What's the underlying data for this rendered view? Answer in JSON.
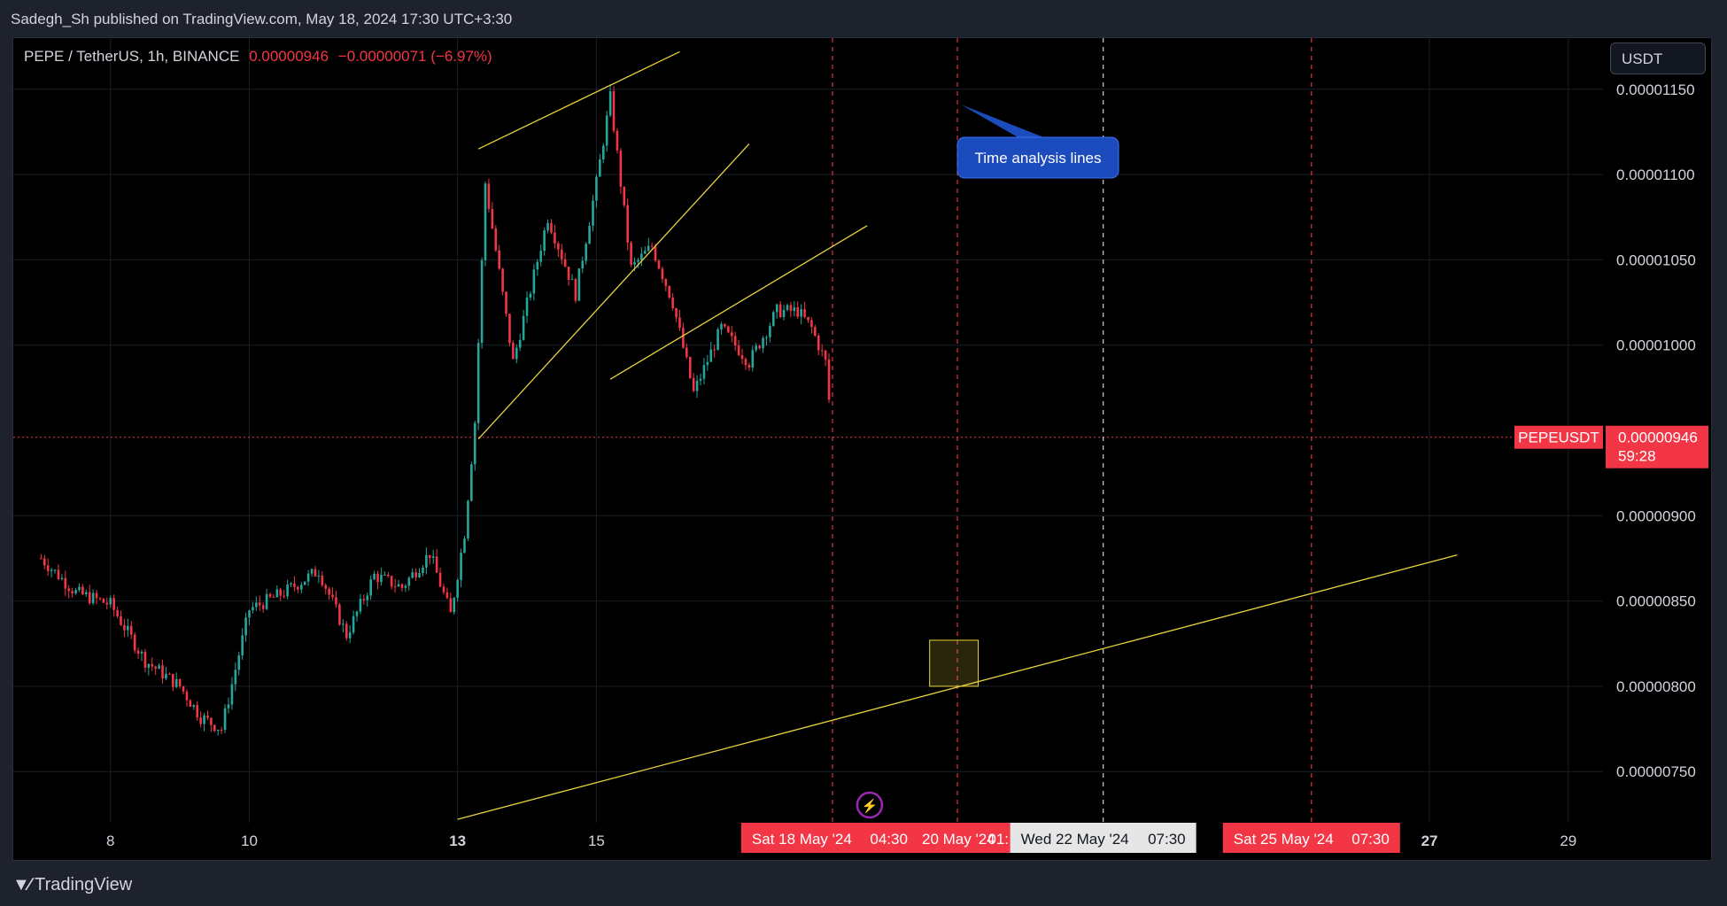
{
  "header": {
    "published": "Sadegh_Sh published on TradingView.com, May 18, 2024 17:30 UTC+3:30"
  },
  "legend": {
    "symbol": "PEPE / TetherUS, 1h, BINANCE",
    "price": "0.00000946",
    "change": "−0.00000071 (−6.97%)"
  },
  "currency_button": "USDT",
  "price_tag": {
    "symbol": "PEPEUSDT",
    "price": "0.00000946",
    "countdown": "59:28"
  },
  "callout": "Time analysis lines",
  "time_labels": [
    {
      "text": "Sat 18 May '24",
      "time": "04:30",
      "bg": "#f23645"
    },
    {
      "text": "20 May '24",
      "time": "01:",
      "bg": "#f23645"
    },
    {
      "text": "Wed 22 May '24",
      "time": "07:30",
      "bg": "#e6e6e6"
    },
    {
      "text": "Sat 25 May '24",
      "time": "07:30",
      "bg": "#f23645"
    }
  ],
  "footer": {
    "brand": "TradingView"
  },
  "colors": {
    "up": "#26a69a",
    "down": "#f23645",
    "trendline": "#e8d43c",
    "callout": "#1c4bbd"
  },
  "chart_data": {
    "type": "candlestick",
    "symbol": "PEPE / TetherUS",
    "interval": "1h",
    "exchange": "BINANCE",
    "last_price": 9.46e-06,
    "x_ticks": [
      "8",
      "10",
      "13",
      "15",
      "27",
      "29"
    ],
    "y_ticks": [
      "0.00000750",
      "0.00000800",
      "0.00000850",
      "0.00000900",
      "0.00001000",
      "0.00001050",
      "0.00001100",
      "0.00001150"
    ],
    "ylim": [
      7.2e-06,
      1.18e-05
    ],
    "xlim_days": [
      6.6,
      29.5
    ],
    "close_path": [
      [
        7.0,
        8.75e-06
      ],
      [
        7.5,
        8.55e-06
      ],
      [
        8.0,
        8.48e-06
      ],
      [
        8.5,
        8.15e-06
      ],
      [
        9.0,
        8e-06
      ],
      [
        9.3,
        7.82e-06
      ],
      [
        9.6,
        7.75e-06
      ],
      [
        10.0,
        8.45e-06
      ],
      [
        10.5,
        8.55e-06
      ],
      [
        11.0,
        8.68e-06
      ],
      [
        11.4,
        8.3e-06
      ],
      [
        11.8,
        8.65e-06
      ],
      [
        12.2,
        8.58e-06
      ],
      [
        12.6,
        8.78e-06
      ],
      [
        12.9,
        8.42e-06
      ],
      [
        13.1,
        8.9e-06
      ],
      [
        13.25,
        9.55e-06
      ],
      [
        13.4,
        1.095e-05
      ],
      [
        13.8,
        9.9e-06
      ],
      [
        14.3,
        1.075e-05
      ],
      [
        14.7,
        1.03e-05
      ],
      [
        15.0,
        1.095e-05
      ],
      [
        15.2,
        1.145e-05
      ],
      [
        15.5,
        1.045e-05
      ],
      [
        15.8,
        1.058e-05
      ],
      [
        16.1,
        1.025e-05
      ],
      [
        16.4,
        9.72e-06
      ],
      [
        16.8,
        1.01e-05
      ],
      [
        17.2,
        9.9e-06
      ],
      [
        17.6,
        1.02e-05
      ],
      [
        17.9,
        1.02e-05
      ],
      [
        18.1,
        1.01e-05
      ],
      [
        18.3,
        9.9e-06
      ],
      [
        18.4,
        9.46e-06
      ]
    ],
    "trendlines": [
      {
        "from": [
          13.3,
          1.115e-05
        ],
        "to": [
          16.2,
          1.172e-05
        ]
      },
      {
        "from": [
          13.3,
          9.45e-06
        ],
        "to": [
          17.2,
          1.118e-05
        ]
      },
      {
        "from": [
          15.2,
          9.8e-06
        ],
        "to": [
          18.9,
          1.07e-05
        ]
      },
      {
        "from": [
          13.0,
          7.22e-06
        ],
        "to": [
          27.4,
          8.77e-06
        ]
      }
    ],
    "time_lines": [
      {
        "x": 18.4,
        "color": "#f23645"
      },
      {
        "x": 20.2,
        "color": "#f23645"
      },
      {
        "x": 22.3,
        "color": "#e6e6e6"
      },
      {
        "x": 25.3,
        "color": "#f23645"
      }
    ],
    "price_line": 9.46e-06,
    "highlight_box": {
      "x_from": 19.8,
      "x_to": 20.5,
      "y_from": 8e-06,
      "y_to": 8.27e-06
    }
  }
}
